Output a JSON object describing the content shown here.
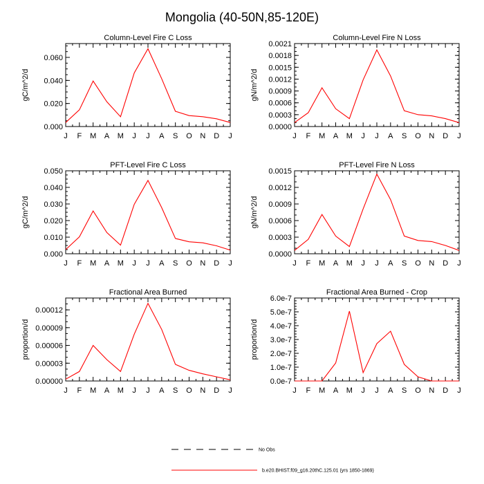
{
  "figure": {
    "title": "Mongolia (40-50N,85-120E)"
  },
  "legend": {
    "entries": [
      {
        "label": "No Obs",
        "style": "dashed",
        "color": "#000000"
      },
      {
        "label": "b.e20.BHIST.f09_g16.20thC.125.01 (yrs 1850-1869)",
        "style": "solid",
        "color": "#ff0000"
      }
    ]
  },
  "chart_data": [
    {
      "type": "line",
      "title": "Column-Level Fire C Loss",
      "ylabel": "gC/m^2/d",
      "categories": [
        "J",
        "F",
        "M",
        "A",
        "M",
        "J",
        "J",
        "A",
        "S",
        "O",
        "N",
        "D",
        "J"
      ],
      "ylim": [
        0,
        0.072
      ],
      "yticks": [
        "0.000",
        "0.020",
        "0.040",
        "0.060"
      ],
      "yticks_values": [
        0,
        0.02,
        0.04,
        0.06
      ],
      "yminor_step": 0.005,
      "series": [
        {
          "color": "#ff0000",
          "values": [
            0.0035,
            0.0145,
            0.0395,
            0.0215,
            0.0085,
            0.0465,
            0.0675,
            0.0415,
            0.0132,
            0.0095,
            0.0085,
            0.0067,
            0.0035
          ]
        }
      ]
    },
    {
      "type": "line",
      "title": "Column-Level Fire N Loss",
      "ylabel": "gN/m^2/d",
      "categories": [
        "J",
        "F",
        "M",
        "A",
        "M",
        "J",
        "J",
        "A",
        "S",
        "O",
        "N",
        "D",
        "J"
      ],
      "ylim": [
        0,
        0.0021
      ],
      "yticks": [
        "0.0000",
        "0.0003",
        "0.0006",
        "0.0009",
        "0.0012",
        "0.0015",
        "0.0018",
        "0.0021"
      ],
      "yticks_values": [
        0,
        0.0003,
        0.0006,
        0.0009,
        0.0012,
        0.0015,
        0.0018,
        0.0021
      ],
      "yminor_step": 0.0001,
      "series": [
        {
          "color": "#ff0000",
          "values": [
            0.0001,
            0.00035,
            0.00098,
            0.00045,
            0.0002,
            0.00118,
            0.00194,
            0.00128,
            0.0004,
            0.0003,
            0.00027,
            0.0002,
            0.0001
          ]
        }
      ]
    },
    {
      "type": "line",
      "title": "PFT-Level Fire C Loss",
      "ylabel": "gC/m^2/d",
      "categories": [
        "J",
        "F",
        "M",
        "A",
        "M",
        "J",
        "J",
        "A",
        "S",
        "O",
        "N",
        "D",
        "J"
      ],
      "ylim": [
        0,
        0.05
      ],
      "yticks": [
        "0.000",
        "0.010",
        "0.020",
        "0.030",
        "0.040",
        "0.050"
      ],
      "yticks_values": [
        0,
        0.01,
        0.02,
        0.03,
        0.04,
        0.05
      ],
      "yminor_step": 0.0025,
      "series": [
        {
          "color": "#ff0000",
          "values": [
            0.0025,
            0.0102,
            0.0258,
            0.0128,
            0.0052,
            0.0298,
            0.0442,
            0.0278,
            0.0092,
            0.0072,
            0.0066,
            0.0048,
            0.0022
          ]
        }
      ]
    },
    {
      "type": "line",
      "title": "PFT-Level Fire N Loss",
      "ylabel": "gN/m^2/d",
      "categories": [
        "J",
        "F",
        "M",
        "A",
        "M",
        "J",
        "J",
        "A",
        "S",
        "O",
        "N",
        "D",
        "J"
      ],
      "ylim": [
        0,
        0.0015
      ],
      "yticks": [
        "0.0000",
        "0.0003",
        "0.0006",
        "0.0009",
        "0.0012",
        "0.0015"
      ],
      "yticks_values": [
        0,
        0.0003,
        0.0006,
        0.0009,
        0.0012,
        0.0015
      ],
      "yminor_step": 0.0001,
      "series": [
        {
          "color": "#ff0000",
          "values": [
            6e-05,
            0.00026,
            0.00071,
            0.00032,
            0.00013,
            0.00081,
            0.00144,
            0.00098,
            0.00032,
            0.00024,
            0.00022,
            0.00015,
            6e-05
          ]
        }
      ]
    },
    {
      "type": "line",
      "title": "Fractional Area Burned",
      "ylabel": "proportion/d",
      "categories": [
        "J",
        "F",
        "M",
        "A",
        "M",
        "J",
        "J",
        "A",
        "S",
        "O",
        "N",
        "D",
        "J"
      ],
      "ylim": [
        0,
        0.00014
      ],
      "yticks": [
        "0.00000",
        "0.00003",
        "0.00006",
        "0.00009",
        "0.00012"
      ],
      "yticks_values": [
        0,
        3e-05,
        6e-05,
        9e-05,
        0.00012
      ],
      "yminor_step": 1e-05,
      "series": [
        {
          "color": "#ff0000",
          "values": [
            3e-06,
            1.6e-05,
            6e-05,
            3.6e-05,
            1.6e-05,
            7.9e-05,
            0.000131,
            8.7e-05,
            2.8e-05,
            1.8e-05,
            1.2e-05,
            7e-06,
            2e-06
          ]
        }
      ]
    },
    {
      "type": "line",
      "title": "Fractional Area Burned - Crop",
      "ylabel": "proportion/d",
      "categories": [
        "J",
        "F",
        "M",
        "A",
        "M",
        "J",
        "J",
        "A",
        "S",
        "O",
        "N",
        "D",
        "J"
      ],
      "ylim": [
        0,
        6e-07
      ],
      "yticks": [
        "0.0e-7",
        "1.0e-7",
        "2.0e-7",
        "3.0e-7",
        "4.0e-7",
        "5.0e-7",
        "6.0e-7"
      ],
      "yticks_values": [
        0,
        1e-07,
        2e-07,
        3e-07,
        4e-07,
        5e-07,
        6e-07
      ],
      "yminor_step": 2e-08,
      "series": [
        {
          "color": "#ff0000",
          "values": [
            0,
            0,
            0,
            1.3e-07,
            5.05e-07,
            6e-08,
            2.7e-07,
            3.6e-07,
            1.2e-07,
            3e-08,
            0,
            0,
            0
          ]
        }
      ]
    }
  ]
}
